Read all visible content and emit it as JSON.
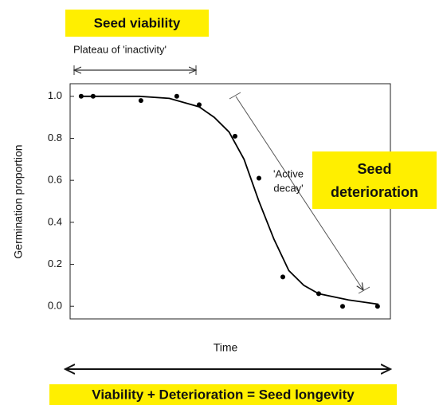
{
  "chart_data": {
    "type": "scatter",
    "y_label": "Germination proportion",
    "x_label": "Time",
    "x": [
      0.05,
      0.45,
      2.05,
      3.25,
      4.0,
      5.2,
      6.0,
      6.8,
      8.0,
      8.8,
      9.97
    ],
    "values": [
      1.0,
      1.0,
      0.98,
      1.0,
      0.96,
      0.81,
      0.61,
      0.14,
      0.06,
      0.0,
      0.0
    ],
    "color": "#000000",
    "fit_x": [
      0,
      1,
      2,
      3,
      4,
      4.5,
      5,
      5.5,
      6,
      6.5,
      7,
      7.5,
      8,
      9,
      10
    ],
    "fit_values": [
      1.0,
      1.0,
      1.0,
      0.99,
      0.95,
      0.9,
      0.83,
      0.7,
      0.5,
      0.32,
      0.17,
      0.1,
      0.06,
      0.03,
      0.01
    ],
    "fit_color": "#000000",
    "xlim": [
      -0.32,
      10.4
    ],
    "ylim": [
      -0.06,
      1.06
    ],
    "yticks": [
      {
        "value": 0,
        "label": "0.0"
      },
      0.2,
      0.4,
      0.6,
      0.8,
      {
        "value": 1,
        "label": "1.0"
      }
    ],
    "annotations": {
      "seed_viability": "Seed viability",
      "plateau": "Plateau of 'inactivity'",
      "active_decay": [
        "'Active",
        "decay'"
      ],
      "seed_deterioration": [
        "Seed",
        "deterioration"
      ],
      "longevity": "Viability + Deterioration = Seed longevity"
    }
  }
}
